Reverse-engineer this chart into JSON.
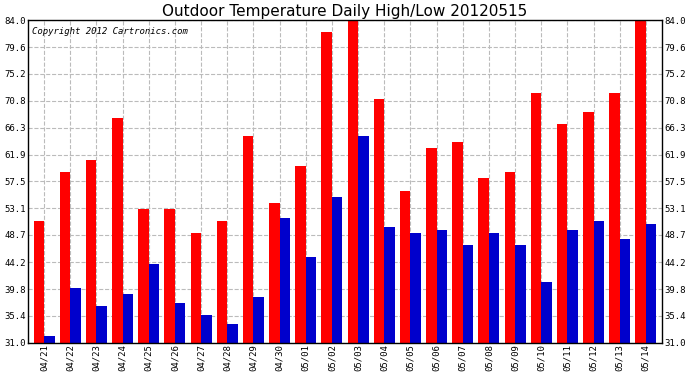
{
  "title": "Outdoor Temperature Daily High/Low 20120515",
  "copyright": "Copyright 2012 Cartronics.com",
  "dates": [
    "04/21",
    "04/22",
    "04/23",
    "04/24",
    "04/25",
    "04/26",
    "04/27",
    "04/28",
    "04/29",
    "04/30",
    "05/01",
    "05/02",
    "05/03",
    "05/04",
    "05/05",
    "05/06",
    "05/07",
    "05/08",
    "05/09",
    "05/10",
    "05/11",
    "05/12",
    "05/13",
    "05/14"
  ],
  "highs": [
    51.0,
    59.0,
    61.0,
    68.0,
    53.0,
    53.0,
    49.0,
    51.0,
    65.0,
    54.0,
    60.0,
    82.0,
    85.0,
    71.0,
    56.0,
    63.0,
    64.0,
    58.0,
    59.0,
    72.0,
    67.0,
    69.0,
    72.0,
    84.0
  ],
  "lows": [
    32.0,
    40.0,
    37.0,
    39.0,
    44.0,
    37.5,
    35.5,
    34.0,
    38.5,
    51.5,
    45.0,
    55.0,
    65.0,
    50.0,
    49.0,
    49.5,
    47.0,
    49.0,
    47.0,
    41.0,
    49.5,
    51.0,
    48.0,
    50.5
  ],
  "high_color": "#ff0000",
  "low_color": "#0000cc",
  "bg_color": "#ffffff",
  "grid_color": "#bbbbbb",
  "y_min": 31.0,
  "y_max": 84.0,
  "yticks": [
    31.0,
    35.4,
    39.8,
    44.2,
    48.7,
    53.1,
    57.5,
    61.9,
    66.3,
    70.8,
    75.2,
    79.6,
    84.0
  ],
  "title_fontsize": 11,
  "copyright_fontsize": 6.5,
  "tick_fontsize": 6.5,
  "bar_width": 0.4
}
